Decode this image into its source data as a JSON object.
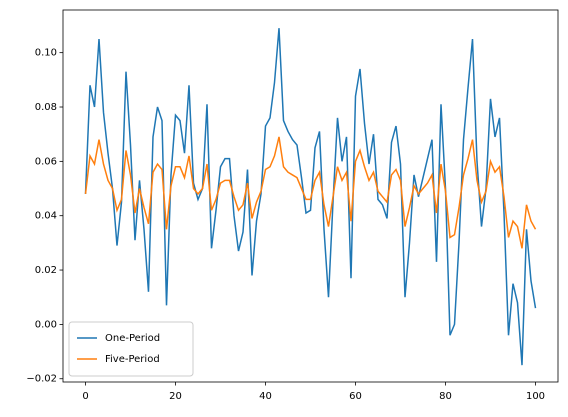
{
  "chart_data": {
    "type": "line",
    "x": [
      0,
      1,
      2,
      3,
      4,
      5,
      6,
      7,
      8,
      9,
      10,
      11,
      12,
      13,
      14,
      15,
      16,
      17,
      18,
      19,
      20,
      21,
      22,
      23,
      24,
      25,
      26,
      27,
      28,
      29,
      30,
      31,
      32,
      33,
      34,
      35,
      36,
      37,
      38,
      39,
      40,
      41,
      42,
      43,
      44,
      45,
      46,
      47,
      48,
      49,
      50,
      51,
      52,
      53,
      54,
      55,
      56,
      57,
      58,
      59,
      60,
      61,
      62,
      63,
      64,
      65,
      66,
      67,
      68,
      69,
      70,
      71,
      72,
      73,
      74,
      75,
      76,
      77,
      78,
      79,
      80,
      81,
      82,
      83,
      84,
      85,
      86,
      87,
      88,
      89,
      90,
      91,
      92,
      93,
      94,
      95,
      96,
      97,
      98,
      99,
      100
    ],
    "series": [
      {
        "name": "One-Period",
        "color": "#1f77b4",
        "values": [
          0.048,
          0.088,
          0.08,
          0.105,
          0.078,
          0.063,
          0.05,
          0.029,
          0.045,
          0.093,
          0.066,
          0.031,
          0.053,
          0.035,
          0.012,
          0.069,
          0.08,
          0.075,
          0.007,
          0.055,
          0.077,
          0.075,
          0.063,
          0.088,
          0.052,
          0.046,
          0.05,
          0.081,
          0.028,
          0.042,
          0.058,
          0.061,
          0.061,
          0.04,
          0.027,
          0.034,
          0.057,
          0.018,
          0.038,
          0.048,
          0.073,
          0.076,
          0.089,
          0.109,
          0.075,
          0.071,
          0.068,
          0.066,
          0.054,
          0.041,
          0.042,
          0.065,
          0.071,
          0.035,
          0.01,
          0.045,
          0.076,
          0.06,
          0.069,
          0.017,
          0.084,
          0.094,
          0.074,
          0.059,
          0.07,
          0.046,
          0.044,
          0.039,
          0.067,
          0.073,
          0.059,
          0.01,
          0.03,
          0.055,
          0.047,
          0.054,
          0.061,
          0.068,
          0.023,
          0.081,
          0.05,
          -0.004,
          0.0,
          0.03,
          0.068,
          0.087,
          0.105,
          0.06,
          0.036,
          0.05,
          0.083,
          0.069,
          0.076,
          0.041,
          -0.004,
          0.015,
          0.008,
          -0.015,
          0.035,
          0.016,
          0.006
        ]
      },
      {
        "name": "Five-Period",
        "color": "#ff7f0e",
        "values": [
          0.048,
          0.062,
          0.059,
          0.068,
          0.059,
          0.053,
          0.05,
          0.042,
          0.046,
          0.064,
          0.055,
          0.041,
          0.05,
          0.043,
          0.037,
          0.056,
          0.059,
          0.057,
          0.035,
          0.051,
          0.058,
          0.058,
          0.054,
          0.062,
          0.05,
          0.048,
          0.05,
          0.059,
          0.042,
          0.046,
          0.052,
          0.053,
          0.053,
          0.047,
          0.042,
          0.044,
          0.052,
          0.039,
          0.045,
          0.049,
          0.057,
          0.058,
          0.062,
          0.069,
          0.058,
          0.056,
          0.055,
          0.054,
          0.05,
          0.046,
          0.046,
          0.053,
          0.056,
          0.044,
          0.036,
          0.047,
          0.058,
          0.053,
          0.056,
          0.038,
          0.06,
          0.064,
          0.058,
          0.053,
          0.056,
          0.049,
          0.047,
          0.045,
          0.055,
          0.057,
          0.053,
          0.036,
          0.043,
          0.051,
          0.048,
          0.05,
          0.052,
          0.055,
          0.041,
          0.059,
          0.049,
          0.032,
          0.033,
          0.043,
          0.055,
          0.061,
          0.068,
          0.053,
          0.045,
          0.049,
          0.06,
          0.056,
          0.058,
          0.047,
          0.032,
          0.038,
          0.036,
          0.028,
          0.044,
          0.038,
          0.035
        ]
      }
    ],
    "xlim": [
      -5,
      105
    ],
    "xticks": [
      0,
      20,
      40,
      60,
      80,
      100
    ],
    "ylim": [
      -0.0212,
      0.1157
    ],
    "yticks": [
      {
        "value": -0.02,
        "label": "−0.02"
      },
      {
        "value": 0,
        "label": "0.00"
      },
      {
        "value": 0.02,
        "label": "0.02"
      },
      {
        "value": 0.04,
        "label": "0.04"
      },
      {
        "value": 0.06,
        "label": "0.06"
      },
      {
        "value": 0.08,
        "label": "0.08"
      },
      {
        "value": 0.1,
        "label": "0.10"
      }
    ],
    "legend": "lower left"
  }
}
